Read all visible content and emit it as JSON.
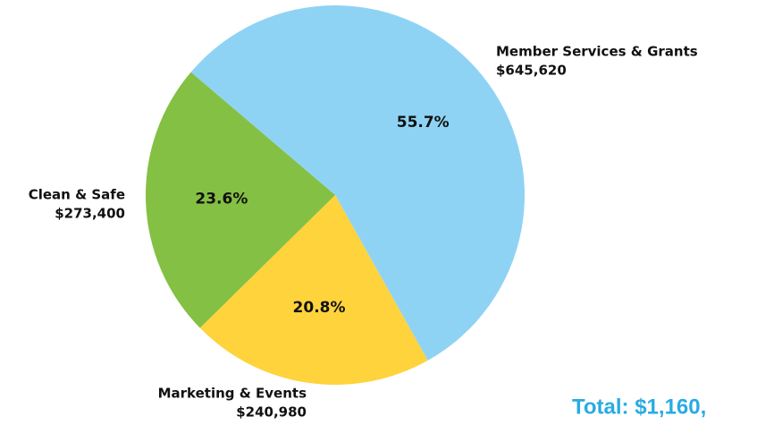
{
  "chart_data": {
    "type": "pie",
    "categories": [
      "Member Services & Grants",
      "Marketing & Events",
      "Clean & Safe"
    ],
    "values": [
      55.7,
      20.8,
      23.6
    ],
    "value_labels": [
      "55.7%",
      "20.8%",
      "23.6%"
    ],
    "amounts": [
      645620,
      240980,
      273400
    ],
    "amount_labels": [
      "$645,620",
      "$240,980",
      "$273,400"
    ],
    "colors": [
      "#8fd3f4",
      "#fed33c",
      "#84c043"
    ],
    "total_label": "Total: $1,160,"
  }
}
